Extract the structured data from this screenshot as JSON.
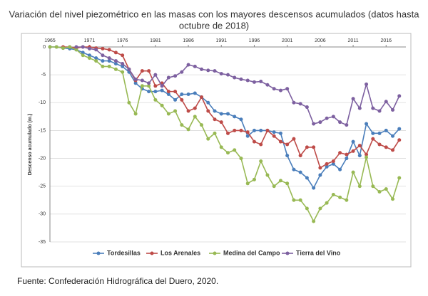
{
  "chart_data": {
    "type": "line",
    "title": [
      "Variación del nivel piezométrico en las masas con los mayores descensos acumulados (datos hasta",
      "octubre de 2018)"
    ],
    "y_label": "Descenso acumulado (m.)",
    "source": "Fuente: Confederación Hidrográfica del Duero, 2020.",
    "x": [
      1965,
      1966,
      1967,
      1968,
      1969,
      1970,
      1971,
      1972,
      1973,
      1974,
      1975,
      1976,
      1977,
      1978,
      1979,
      1980,
      1981,
      1982,
      1983,
      1984,
      1985,
      1986,
      1987,
      1988,
      1989,
      1990,
      1991,
      1992,
      1993,
      1994,
      1995,
      1996,
      1997,
      1998,
      1999,
      2000,
      2001,
      2002,
      2003,
      2004,
      2005,
      2006,
      2007,
      2008,
      2009,
      2010,
      2011,
      2012,
      2013,
      2014,
      2015,
      2016,
      2017,
      2018
    ],
    "xlim": [
      1965,
      2019
    ],
    "xticks": [
      1965,
      1971,
      1976,
      1981,
      1986,
      1991,
      1996,
      2001,
      2006,
      2011,
      2016
    ],
    "ylim": [
      -35,
      0
    ],
    "yticks": [
      0,
      -5,
      -10,
      -15,
      -20,
      -25,
      -30,
      -35
    ],
    "grid": true,
    "legend": "bottom",
    "series": [
      {
        "name": "Tordesillas",
        "color": "#4a7ebb",
        "values": [
          0,
          0,
          -0.2,
          -0.3,
          -0.5,
          -1,
          -1.5,
          -2,
          -2.5,
          -2.5,
          -3,
          -3.5,
          -4.5,
          -6.5,
          -7.5,
          -8,
          -8,
          -7.8,
          -8.5,
          -9.5,
          -8.5,
          -8.5,
          -8.3,
          -9,
          -10,
          -11.5,
          -12,
          -12,
          -12.5,
          -13,
          -16,
          -15,
          -15,
          -15,
          -15.3,
          -15.5,
          -19.5,
          -22,
          -22.5,
          -23.5,
          -25.3,
          -23,
          -21.5,
          -21,
          -22,
          -20,
          -17,
          -19.5,
          -13.8,
          -15.5,
          -15.5,
          -15,
          -16,
          -14.7
        ]
      },
      {
        "name": "Los Arenales",
        "color": "#be4b48",
        "values": [
          null,
          null,
          0,
          0,
          -0.2,
          0,
          0,
          -0.2,
          -0.3,
          -0.5,
          -1,
          -1.5,
          -4,
          -6,
          -4.3,
          -4.3,
          -7,
          -6.5,
          -8,
          -8,
          -9.5,
          -11.5,
          -11,
          -9,
          -11.5,
          -13,
          -13.5,
          -15.5,
          -15,
          -15,
          -15.3,
          -17,
          -17.5,
          -15,
          -16,
          -17,
          -17.5,
          -16.5,
          -19.5,
          -18,
          -18,
          -21.7,
          -21,
          -20.5,
          -19,
          -19.3,
          -18.7,
          -17.7,
          -19.3,
          -16.5,
          -17.5,
          -18,
          -18.5,
          -16.7
        ]
      },
      {
        "name": "Medina del Campo",
        "color": "#98b954",
        "values": [
          0,
          0,
          -0.2,
          0,
          -0.5,
          -1.5,
          -2,
          -2.5,
          -3.5,
          -3.5,
          -4,
          -4.5,
          -10,
          -12,
          -7,
          -7,
          -9.5,
          -10.5,
          -12,
          -11.5,
          -14,
          -14.8,
          -12.5,
          -14,
          -16.5,
          -15.5,
          -18,
          -19,
          -18.5,
          -20,
          -24.5,
          -23.8,
          -20.5,
          -23,
          -25,
          -24,
          -24.5,
          -27.5,
          -27.5,
          -29,
          -31.3,
          -29,
          -28,
          -26.5,
          -27,
          -27.5,
          -22.5,
          -25,
          -19.8,
          -25,
          -26,
          -25.5,
          -27.3,
          -23.5
        ]
      },
      {
        "name": "Tierra del Vino",
        "color": "#7d60a0",
        "values": [
          null,
          null,
          null,
          null,
          0,
          0,
          -0.3,
          -0.5,
          -1.5,
          -2,
          -2.5,
          -3,
          -4,
          -5.8,
          -6,
          -6.5,
          -5,
          -7,
          -5.5,
          -5.2,
          -4.5,
          -3.2,
          -3.5,
          -4,
          -4.2,
          -4.3,
          -4.8,
          -5,
          -5.5,
          -5.8,
          -6,
          -6.3,
          -6.2,
          -6.8,
          -7.5,
          -7.8,
          -7.5,
          -10,
          -10.2,
          -10.8,
          -13.8,
          -13.5,
          -12.8,
          -12.5,
          -13.5,
          -14,
          -9.3,
          -11,
          -6.7,
          -11,
          -11.5,
          -9.8,
          -11.3,
          -8.8
        ]
      }
    ]
  }
}
